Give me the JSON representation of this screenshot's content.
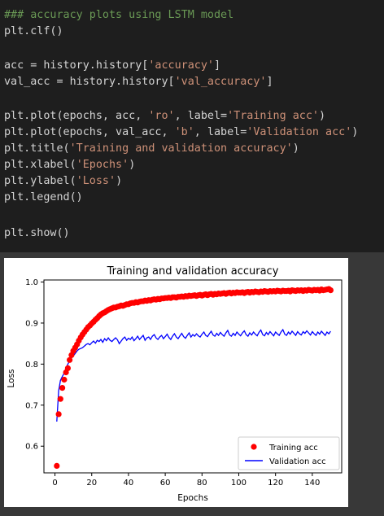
{
  "code": {
    "lines": [
      {
        "parts": [
          {
            "t": "### accuracy plots using LSTM model",
            "c": "comment"
          }
        ]
      },
      {
        "parts": [
          {
            "t": "plt.clf()",
            "c": ""
          }
        ]
      },
      {
        "parts": []
      },
      {
        "parts": [
          {
            "t": "acc = history.history[",
            "c": ""
          },
          {
            "t": "'accuracy'",
            "c": "str"
          },
          {
            "t": "]",
            "c": ""
          }
        ]
      },
      {
        "parts": [
          {
            "t": "val_acc = history.history[",
            "c": ""
          },
          {
            "t": "'val_accuracy'",
            "c": "str"
          },
          {
            "t": "]",
            "c": ""
          }
        ]
      },
      {
        "parts": []
      },
      {
        "parts": [
          {
            "t": "plt.plot(epochs, acc, ",
            "c": ""
          },
          {
            "t": "'ro'",
            "c": "str"
          },
          {
            "t": ", label=",
            "c": ""
          },
          {
            "t": "'Training acc'",
            "c": "str"
          },
          {
            "t": ")",
            "c": ""
          }
        ]
      },
      {
        "parts": [
          {
            "t": "plt.plot(epochs, val_acc, ",
            "c": ""
          },
          {
            "t": "'b'",
            "c": "str"
          },
          {
            "t": ", label=",
            "c": ""
          },
          {
            "t": "'Validation acc'",
            "c": "str"
          },
          {
            "t": ")",
            "c": ""
          }
        ]
      },
      {
        "parts": [
          {
            "t": "plt.title(",
            "c": ""
          },
          {
            "t": "'Training and validation accuracy'",
            "c": "str"
          },
          {
            "t": ")",
            "c": ""
          }
        ]
      },
      {
        "parts": [
          {
            "t": "plt.xlabel(",
            "c": ""
          },
          {
            "t": "'Epochs'",
            "c": "str"
          },
          {
            "t": ")",
            "c": ""
          }
        ]
      },
      {
        "parts": [
          {
            "t": "plt.ylabel(",
            "c": ""
          },
          {
            "t": "'Loss'",
            "c": "str"
          },
          {
            "t": ")",
            "c": ""
          }
        ]
      },
      {
        "parts": [
          {
            "t": "plt.legend()",
            "c": ""
          }
        ]
      },
      {
        "parts": []
      },
      {
        "parts": [
          {
            "t": "plt.show()",
            "c": ""
          }
        ]
      }
    ]
  },
  "colors": {
    "background": "#1e1e1e",
    "output_background": "#383838",
    "code_text": "#d4d4d4",
    "comment": "#6a9955",
    "string": "#ce9178",
    "training_marker": "#ff0000",
    "validation_line": "#0000ff"
  },
  "chart_data": {
    "type": "scatter",
    "title": "Training and validation accuracy",
    "xlabel": "Epochs",
    "ylabel": "Loss",
    "xlim": [
      -6,
      156
    ],
    "ylim": [
      0.535,
      1.005
    ],
    "xticks": [
      0,
      20,
      40,
      60,
      80,
      100,
      120,
      140
    ],
    "yticks": [
      0.6,
      0.7,
      0.8,
      0.9,
      1.0
    ],
    "ytick_labels": [
      "0.6",
      "0.7",
      "0.8",
      "0.9",
      "1.0"
    ],
    "legend": {
      "position": "lower-right",
      "entries": [
        "Training acc",
        "Validation acc"
      ]
    },
    "grid": false,
    "series": [
      {
        "name": "Training acc",
        "style": "points",
        "color": "#ff0000",
        "x": [
          1,
          2,
          3,
          4,
          5,
          6,
          7,
          8,
          9,
          10,
          11,
          12,
          13,
          14,
          15,
          16,
          17,
          18,
          19,
          20,
          21,
          22,
          23,
          24,
          25,
          26,
          27,
          28,
          29,
          30,
          31,
          32,
          33,
          34,
          35,
          36,
          37,
          38,
          39,
          40,
          41,
          42,
          43,
          44,
          45,
          46,
          47,
          48,
          49,
          50,
          51,
          52,
          53,
          54,
          55,
          56,
          57,
          58,
          59,
          60,
          61,
          62,
          63,
          64,
          65,
          66,
          67,
          68,
          69,
          70,
          71,
          72,
          73,
          74,
          75,
          76,
          77,
          78,
          79,
          80,
          81,
          82,
          83,
          84,
          85,
          86,
          87,
          88,
          89,
          90,
          91,
          92,
          93,
          94,
          95,
          96,
          97,
          98,
          99,
          100,
          101,
          102,
          103,
          104,
          105,
          106,
          107,
          108,
          109,
          110,
          111,
          112,
          113,
          114,
          115,
          116,
          117,
          118,
          119,
          120,
          121,
          122,
          123,
          124,
          125,
          126,
          127,
          128,
          129,
          130,
          131,
          132,
          133,
          134,
          135,
          136,
          137,
          138,
          139,
          140,
          141,
          142,
          143,
          144,
          145,
          146,
          147,
          148,
          149,
          150
        ],
        "y": [
          0.552,
          0.678,
          0.715,
          0.742,
          0.762,
          0.78,
          0.79,
          0.81,
          0.822,
          0.832,
          0.84,
          0.848,
          0.857,
          0.865,
          0.872,
          0.878,
          0.884,
          0.89,
          0.894,
          0.899,
          0.903,
          0.908,
          0.912,
          0.917,
          0.921,
          0.924,
          0.926,
          0.929,
          0.932,
          0.934,
          0.936,
          0.938,
          0.938,
          0.94,
          0.941,
          0.943,
          0.942,
          0.944,
          0.946,
          0.946,
          0.948,
          0.949,
          0.949,
          0.951,
          0.95,
          0.952,
          0.953,
          0.953,
          0.955,
          0.954,
          0.956,
          0.955,
          0.957,
          0.958,
          0.957,
          0.959,
          0.958,
          0.96,
          0.96,
          0.961,
          0.961,
          0.962,
          0.961,
          0.963,
          0.963,
          0.962,
          0.964,
          0.964,
          0.965,
          0.964,
          0.966,
          0.965,
          0.967,
          0.966,
          0.967,
          0.968,
          0.966,
          0.968,
          0.969,
          0.967,
          0.969,
          0.97,
          0.968,
          0.97,
          0.971,
          0.969,
          0.971,
          0.97,
          0.972,
          0.971,
          0.972,
          0.973,
          0.971,
          0.973,
          0.974,
          0.972,
          0.974,
          0.973,
          0.975,
          0.974,
          0.974,
          0.975,
          0.973,
          0.975,
          0.976,
          0.974,
          0.976,
          0.975,
          0.977,
          0.976,
          0.975,
          0.977,
          0.976,
          0.978,
          0.977,
          0.976,
          0.978,
          0.977,
          0.978,
          0.977,
          0.979,
          0.978,
          0.977,
          0.979,
          0.978,
          0.978,
          0.979,
          0.977,
          0.98,
          0.979,
          0.978,
          0.98,
          0.979,
          0.98,
          0.978,
          0.98,
          0.979,
          0.981,
          0.98,
          0.979,
          0.981,
          0.98,
          0.981,
          0.979,
          0.982,
          0.98,
          0.981,
          0.982,
          0.983,
          0.98
        ]
      },
      {
        "name": "Validation acc",
        "style": "line",
        "color": "#0000ff",
        "x": [
          1,
          2,
          3,
          4,
          5,
          6,
          7,
          8,
          9,
          10,
          11,
          12,
          13,
          14,
          15,
          16,
          17,
          18,
          19,
          20,
          21,
          22,
          23,
          24,
          25,
          26,
          27,
          28,
          29,
          30,
          31,
          32,
          33,
          34,
          35,
          36,
          37,
          38,
          39,
          40,
          41,
          42,
          43,
          44,
          45,
          46,
          47,
          48,
          49,
          50,
          51,
          52,
          53,
          54,
          55,
          56,
          57,
          58,
          59,
          60,
          61,
          62,
          63,
          64,
          65,
          66,
          67,
          68,
          69,
          70,
          71,
          72,
          73,
          74,
          75,
          76,
          77,
          78,
          79,
          80,
          81,
          82,
          83,
          84,
          85,
          86,
          87,
          88,
          89,
          90,
          91,
          92,
          93,
          94,
          95,
          96,
          97,
          98,
          99,
          100,
          101,
          102,
          103,
          104,
          105,
          106,
          107,
          108,
          109,
          110,
          111,
          112,
          113,
          114,
          115,
          116,
          117,
          118,
          119,
          120,
          121,
          122,
          123,
          124,
          125,
          126,
          127,
          128,
          129,
          130,
          131,
          132,
          133,
          134,
          135,
          136,
          137,
          138,
          139,
          140,
          141,
          142,
          143,
          144,
          145,
          146,
          147,
          148,
          149,
          150
        ],
        "y": [
          0.66,
          0.735,
          0.76,
          0.77,
          0.778,
          0.79,
          0.8,
          0.808,
          0.815,
          0.82,
          0.826,
          0.832,
          0.836,
          0.838,
          0.84,
          0.844,
          0.848,
          0.85,
          0.847,
          0.852,
          0.856,
          0.851,
          0.858,
          0.855,
          0.86,
          0.853,
          0.862,
          0.857,
          0.864,
          0.858,
          0.855,
          0.86,
          0.864,
          0.859,
          0.85,
          0.856,
          0.862,
          0.866,
          0.858,
          0.863,
          0.86,
          0.866,
          0.857,
          0.862,
          0.868,
          0.86,
          0.865,
          0.87,
          0.858,
          0.864,
          0.866,
          0.86,
          0.868,
          0.872,
          0.864,
          0.86,
          0.866,
          0.87,
          0.862,
          0.867,
          0.873,
          0.865,
          0.86,
          0.868,
          0.874,
          0.866,
          0.862,
          0.869,
          0.875,
          0.867,
          0.863,
          0.87,
          0.876,
          0.866,
          0.872,
          0.868,
          0.874,
          0.869,
          0.866,
          0.873,
          0.878,
          0.87,
          0.867,
          0.874,
          0.88,
          0.871,
          0.868,
          0.875,
          0.87,
          0.877,
          0.872,
          0.868,
          0.876,
          0.882,
          0.871,
          0.868,
          0.875,
          0.87,
          0.878,
          0.873,
          0.869,
          0.876,
          0.881,
          0.872,
          0.868,
          0.876,
          0.871,
          0.878,
          0.873,
          0.869,
          0.877,
          0.883,
          0.872,
          0.869,
          0.877,
          0.872,
          0.879,
          0.874,
          0.869,
          0.878,
          0.874,
          0.87,
          0.878,
          0.884,
          0.873,
          0.87,
          0.878,
          0.873,
          0.88,
          0.875,
          0.87,
          0.879,
          0.874,
          0.871,
          0.879,
          0.875,
          0.881,
          0.876,
          0.871,
          0.879,
          0.874,
          0.87,
          0.878,
          0.873,
          0.88,
          0.875,
          0.87,
          0.878,
          0.874,
          0.88
        ]
      }
    ]
  }
}
